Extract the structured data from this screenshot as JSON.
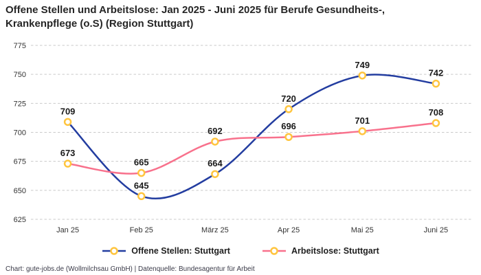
{
  "title": "Offene Stellen und Arbeitslose: Jan 2025 - Juni 2025 für Berufe Gesundheits-, Krankenpflege (o.S) (Region Stuttgart)",
  "footer": "Chart: gute-jobs.de (Wollmilchsau GmbH) | Datenquelle: Bundesagentur für Arbeit",
  "chart_data": {
    "type": "line",
    "categories": [
      "Jan 25",
      "Feb 25",
      "März 25",
      "Apr 25",
      "Mai 25",
      "Juni 25"
    ],
    "series": [
      {
        "name": "Offene Stellen: Stuttgart",
        "color": "#233da0",
        "values": [
          709,
          645,
          664,
          720,
          749,
          742
        ]
      },
      {
        "name": "Arbeitslose: Stuttgart",
        "color": "#f8718c",
        "values": [
          673,
          665,
          692,
          696,
          701,
          708
        ]
      }
    ],
    "ylim": [
      625,
      775
    ],
    "yticks": [
      625,
      650,
      675,
      700,
      725,
      750,
      775
    ],
    "marker_color": "#ffc53f",
    "marker_fill": "#ffffff",
    "grid_color": "#c9c9c9",
    "tick_color": "#333333",
    "label_color": "#1a1a1a",
    "grid": "horizontal-dashed",
    "legend_position": "bottom",
    "smooth": true,
    "data_labels": true
  }
}
